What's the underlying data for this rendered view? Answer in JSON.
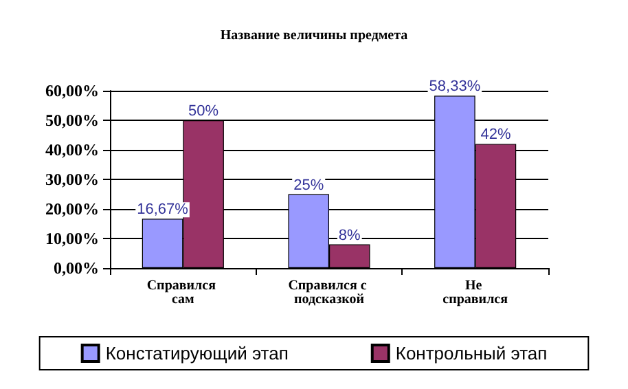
{
  "chart_data": {
    "type": "bar",
    "title": "Название величины предмета",
    "categories": [
      "Справился сам",
      "Справился с подсказкой",
      "Не справился"
    ],
    "series": [
      {
        "name": "Констатирующий этап",
        "color": "#9999ff",
        "values": [
          16.67,
          25,
          58.33
        ],
        "value_labels": [
          "16,67%",
          "25%",
          "58,33%"
        ]
      },
      {
        "name": "Контрольный этап",
        "color": "#993366",
        "values": [
          50,
          8,
          42
        ],
        "value_labels": [
          "50%",
          "8%",
          "42%"
        ]
      }
    ],
    "ylim": [
      0,
      60
    ],
    "yticks": [
      {
        "value": 0,
        "label": "0,00%"
      },
      {
        "value": 10,
        "label": "10,00%"
      },
      {
        "value": 20,
        "label": "20,00%"
      },
      {
        "value": 30,
        "label": "30,00%"
      },
      {
        "value": 40,
        "label": "40,00%"
      },
      {
        "value": 50,
        "label": "50,00%"
      },
      {
        "value": 60,
        "label": "60,00%"
      }
    ],
    "grid": "y",
    "legend": "bottom"
  }
}
